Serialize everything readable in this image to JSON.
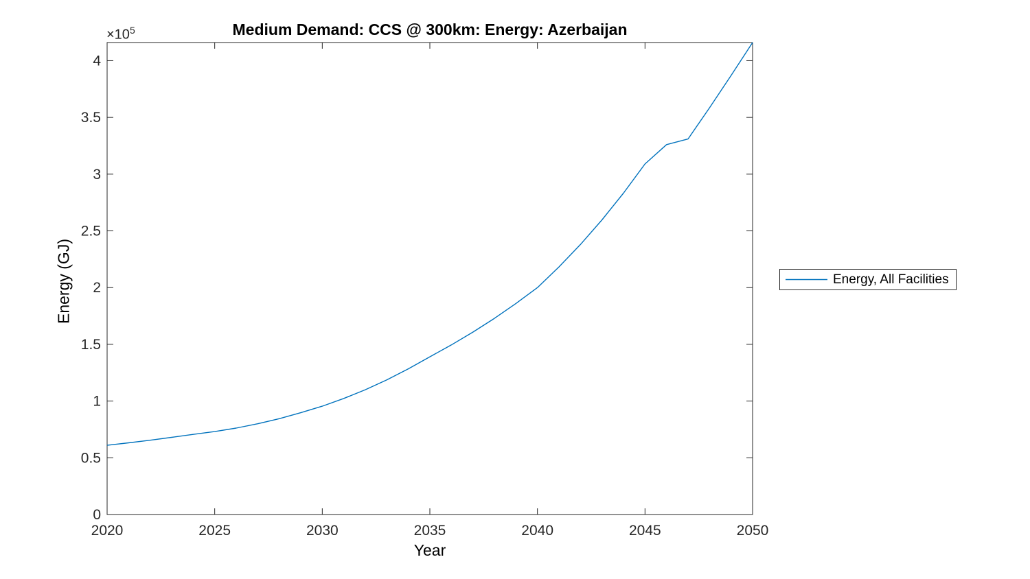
{
  "figure": {
    "title": "Medium Demand: CCS @ 300km: Energy: Azerbaijan",
    "y_axis_multiplier": {
      "base": "×10",
      "exponent": "5"
    },
    "xlabel": "Year",
    "ylabel": "Energy (GJ)",
    "legend": {
      "entries": [
        {
          "label": "Energy, All Facilities",
          "color": "#0072BD"
        }
      ],
      "position": "outside-right"
    },
    "colors": {
      "series_blue": "#0072BD",
      "axis": "#262626",
      "background": "#ffffff"
    }
  },
  "chart_data": {
    "type": "line",
    "title": "Medium Demand: CCS @ 300km: Energy: Azerbaijan",
    "xlabel": "Year",
    "ylabel": "Energy (GJ)",
    "y_unit_note": "y values shown scaled by 10^5 on axis",
    "x": [
      2020,
      2021,
      2022,
      2023,
      2024,
      2025,
      2026,
      2027,
      2028,
      2029,
      2030,
      2031,
      2032,
      2033,
      2034,
      2035,
      2036,
      2037,
      2038,
      2039,
      2040,
      2041,
      2042,
      2043,
      2044,
      2045,
      2046,
      2047,
      2048,
      2049,
      2050
    ],
    "series": [
      {
        "name": "Energy, All Facilities",
        "color": "#0072BD",
        "values": [
          61000,
          63200,
          65500,
          68000,
          70600,
          73100,
          76200,
          80000,
          84500,
          89700,
          95500,
          102300,
          110000,
          118700,
          128400,
          139000,
          149500,
          160800,
          172900,
          186000,
          200000,
          218200,
          238000,
          259700,
          283300,
          309000,
          326000,
          331000,
          358500,
          387000,
          416000
        ]
      }
    ],
    "xlim": [
      2020,
      2050
    ],
    "ylim": [
      0,
      416000
    ],
    "xticks": [
      2020,
      2025,
      2030,
      2035,
      2040,
      2045,
      2050
    ],
    "xtick_labels": [
      "2020",
      "2025",
      "2030",
      "2035",
      "2040",
      "2045",
      "2050"
    ],
    "ytick_values": [
      0,
      50000,
      100000,
      150000,
      200000,
      250000,
      300000,
      350000,
      400000
    ],
    "ytick_labels": [
      "0",
      "0.5",
      "1",
      "1.5",
      "2",
      "2.5",
      "3",
      "3.5",
      "4"
    ],
    "grid": false,
    "legend_position": "outside-right"
  }
}
